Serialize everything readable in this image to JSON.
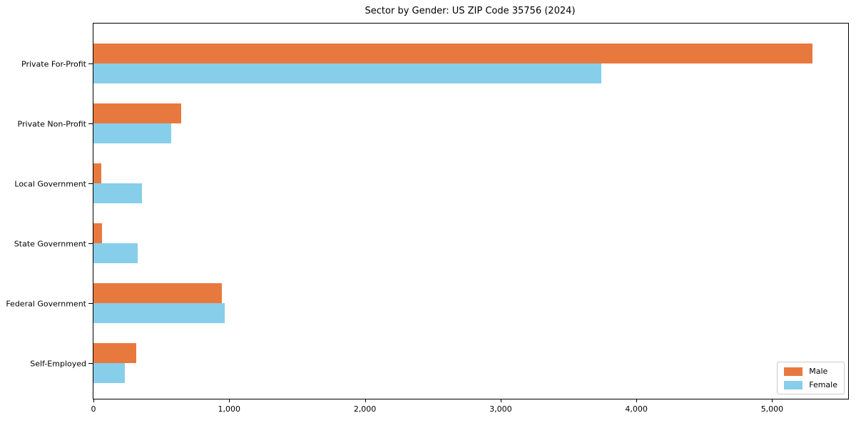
{
  "title": "Sector by Gender: US ZIP Code 35756 (2024)",
  "chart_data": {
    "type": "bar",
    "orientation": "horizontal",
    "title": "Sector by Gender: US ZIP Code 35756 (2024)",
    "categories": [
      "Private For-Profit",
      "Private Non-Profit",
      "Local Government",
      "State Government",
      "Federal Government",
      "Self-Employed"
    ],
    "series": [
      {
        "name": "Male",
        "color": "#E8793E",
        "values": [
          5295,
          645,
          58,
          62,
          945,
          315
        ]
      },
      {
        "name": "Female",
        "color": "#87CEEB",
        "values": [
          3740,
          575,
          355,
          325,
          965,
          230
        ]
      }
    ],
    "xlabel": "",
    "ylabel": "",
    "xlim": [
      0,
      5560
    ],
    "xticks": [
      0,
      1000,
      2000,
      3000,
      4000,
      5000
    ],
    "xtick_labels": [
      "0",
      "1,000",
      "2,000",
      "3,000",
      "4,000",
      "5,000"
    ],
    "grid": false,
    "legend_position": "lower right"
  }
}
